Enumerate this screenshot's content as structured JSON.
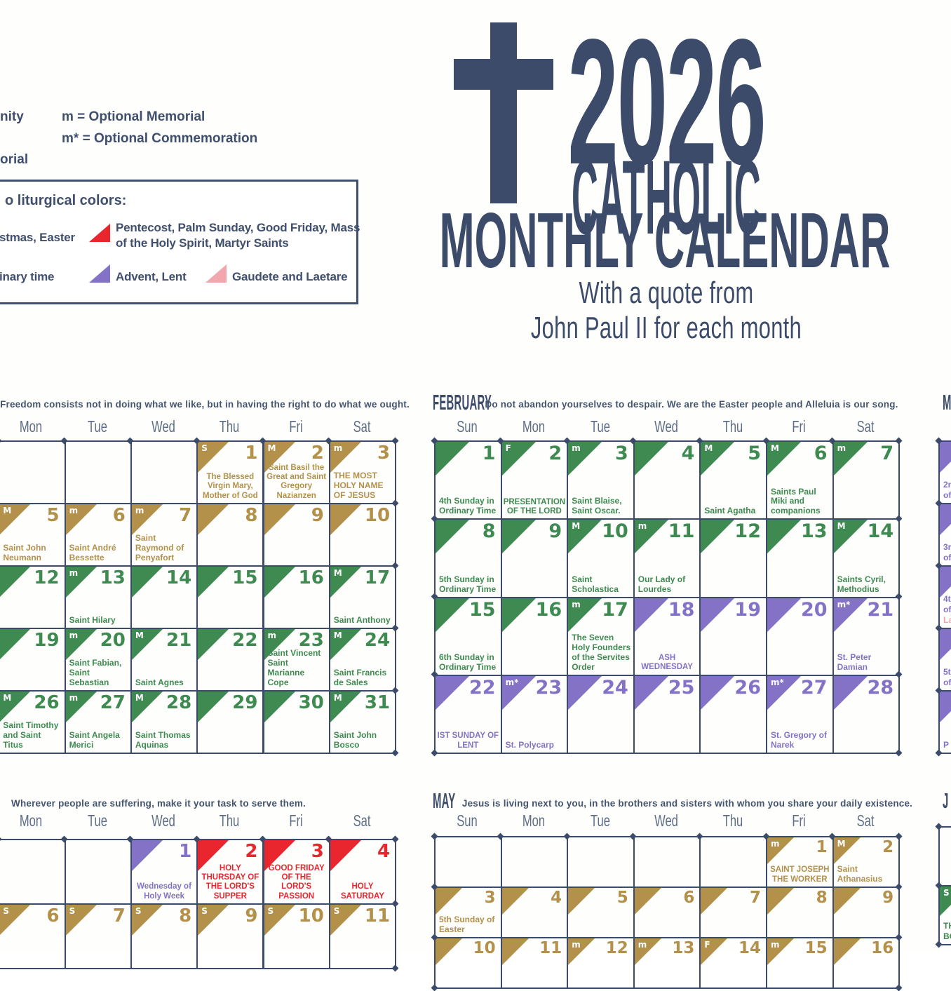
{
  "poster_title": {
    "year": "2026",
    "line1": "CATHOLIC",
    "line2": "MONTHLY CALENDAR",
    "subtitle_line1": "With a quote from",
    "subtitle_line2": "John Paul II for each month"
  },
  "legend": {
    "fragment_solemnity": "nity",
    "optional_memorial": "m = Optional Memorial",
    "optional_commemoration": "m* = Optional Commemoration",
    "fragment_memorial": "orial",
    "colors_box": {
      "title_fragment": "o liturgical colors:",
      "row1_left_fragment": "stmas, Easter",
      "row1_right_line1": "Pentecost, Palm Sunday, Good Friday, Mass",
      "row1_right_line2": "of the Holy Spirit, Martyr Saints",
      "row2_left_fragment": "inary time",
      "row2_mid": "Advent, Lent",
      "row2_right": "Gaudete and Laetare"
    }
  },
  "colors": {
    "navy": "#3b4b69",
    "header_gray": "#5f6e86",
    "gold": "#b3914b",
    "green": "#3e8a50",
    "purple": "#8372c5",
    "pink": "#f2a6ae",
    "red": "#e9262e"
  },
  "months": [
    {
      "id": "january",
      "name": "",
      "quote": "Freedom consists not in doing what we like, but in having the right to do what we ought.",
      "day_headers": [
        "Mon",
        "Tue",
        "Wed",
        "Thu",
        "Fri",
        "Sat"
      ],
      "weeks": [
        [
          {},
          {},
          {},
          {
            "day": "1",
            "season": "gold",
            "badge": "S",
            "label": "The Blessed Virgin Mary, Mother of God",
            "center": true
          },
          {
            "day": "2",
            "season": "gold",
            "badge": "M",
            "label": "Saint Basil the Great and Saint Gregory Nazianzen",
            "center": true
          },
          {
            "day": "3",
            "season": "gold",
            "badge": "m",
            "label": "THE MOST HOLY NAME OF JESUS"
          }
        ],
        [
          {
            "day": "5",
            "season": "gold",
            "badge": "M",
            "label": "Saint John Neumann"
          },
          {
            "day": "6",
            "season": "gold",
            "badge": "m",
            "label": "Saint André Bessette"
          },
          {
            "day": "7",
            "season": "gold",
            "badge": "m",
            "label": "Saint Raymond of Penyafort"
          },
          {
            "day": "8",
            "season": "gold"
          },
          {
            "day": "9",
            "season": "gold"
          },
          {
            "day": "10",
            "season": "gold"
          }
        ],
        [
          {
            "day": "12",
            "season": "green"
          },
          {
            "day": "13",
            "season": "green",
            "badge": "m",
            "label": "Saint Hilary"
          },
          {
            "day": "14",
            "season": "green"
          },
          {
            "day": "15",
            "season": "green"
          },
          {
            "day": "16",
            "season": "green"
          },
          {
            "day": "17",
            "season": "green",
            "badge": "M",
            "label": "Saint Anthony"
          }
        ],
        [
          {
            "day": "19",
            "season": "green"
          },
          {
            "day": "20",
            "season": "green",
            "badge": "m",
            "label": "Saint Fabian, Saint Sebastian"
          },
          {
            "day": "21",
            "season": "green",
            "badge": "M",
            "label": "Saint Agnes"
          },
          {
            "day": "22",
            "season": "green"
          },
          {
            "day": "23",
            "season": "green",
            "badge": "m",
            "label": "Saint Vincent Saint Marianne Cope"
          },
          {
            "day": "24",
            "season": "green",
            "badge": "M",
            "label": "Saint Francis de Sales"
          }
        ],
        [
          {
            "day": "26",
            "season": "green",
            "badge": "M",
            "label": "Saint Timothy and Saint Titus"
          },
          {
            "day": "27",
            "season": "green",
            "badge": "m",
            "label": "Saint Angela Merici"
          },
          {
            "day": "28",
            "season": "green",
            "badge": "M",
            "label": "Saint Thomas Aquinas"
          },
          {
            "day": "29",
            "season": "green"
          },
          {
            "day": "30",
            "season": "green"
          },
          {
            "day": "31",
            "season": "green",
            "badge": "M",
            "label": "Saint John Bosco"
          }
        ]
      ]
    },
    {
      "id": "february",
      "name": "FEBRUARY",
      "quote": "Do not abandon yourselves to despair. We are the Easter people and Alleluia is our song.",
      "day_headers": [
        "Sun",
        "Mon",
        "Tue",
        "Wed",
        "Thu",
        "Fri",
        "Sat"
      ],
      "weeks": [
        [
          {
            "day": "1",
            "season": "green",
            "label": "4th Sunday in Ordinary Time"
          },
          {
            "day": "2",
            "season": "green",
            "badge": "F",
            "label": "PRESENTATION OF THE LORD",
            "center": true
          },
          {
            "day": "3",
            "season": "green",
            "badge": "m",
            "label": "Saint Blaise, Saint Oscar."
          },
          {
            "day": "4",
            "season": "green"
          },
          {
            "day": "5",
            "season": "green",
            "badge": "M",
            "label": "Saint Agatha"
          },
          {
            "day": "6",
            "season": "green",
            "badge": "M",
            "label": "Saints Paul Miki and companions"
          },
          {
            "day": "7",
            "season": "green",
            "badge": "m"
          }
        ],
        [
          {
            "day": "8",
            "season": "green",
            "label": "5th Sunday in Ordinary Time"
          },
          {
            "day": "9",
            "season": "green"
          },
          {
            "day": "10",
            "season": "green",
            "badge": "M",
            "label": "Saint Scholastica"
          },
          {
            "day": "11",
            "season": "green",
            "badge": "m",
            "label": "Our Lady of Lourdes"
          },
          {
            "day": "12",
            "season": "green"
          },
          {
            "day": "13",
            "season": "green"
          },
          {
            "day": "14",
            "season": "green",
            "badge": "M",
            "label": "Saints Cyril, Methodius"
          }
        ],
        [
          {
            "day": "15",
            "season": "green",
            "label": "6th Sunday in Ordinary Time"
          },
          {
            "day": "16",
            "season": "green"
          },
          {
            "day": "17",
            "season": "green",
            "badge": "m",
            "label": "The Seven Holy Founders of the Servites Order"
          },
          {
            "day": "18",
            "season": "purple",
            "label": "ASH WEDNESDAY",
            "center": true
          },
          {
            "day": "19",
            "season": "purple"
          },
          {
            "day": "20",
            "season": "purple"
          },
          {
            "day": "21",
            "season": "purple",
            "badge": "m*",
            "label": "St. Peter Damian"
          }
        ],
        [
          {
            "day": "22",
            "season": "purple",
            "label": "IST SUNDAY OF LENT",
            "center": true
          },
          {
            "day": "23",
            "season": "purple",
            "badge": "m*",
            "label": "St. Polycarp"
          },
          {
            "day": "24",
            "season": "purple"
          },
          {
            "day": "25",
            "season": "purple"
          },
          {
            "day": "26",
            "season": "purple"
          },
          {
            "day": "27",
            "season": "purple",
            "badge": "m*",
            "label": "St. Gregory of Narek"
          },
          {
            "day": "28",
            "season": "purple"
          }
        ]
      ]
    },
    {
      "id": "march",
      "name_fragment": "M",
      "sliver_rows": [
        {
          "season": "purple",
          "lines": [
            {
              "text": "2n"
            },
            {
              "text": "of"
            }
          ]
        },
        {
          "season": "purple",
          "lines": [
            {
              "text": "3r"
            },
            {
              "text": "of"
            }
          ]
        },
        {
          "season": "purple",
          "lines": [
            {
              "text": "4t"
            },
            {
              "text": "of"
            },
            {
              "text": "La",
              "color": "pink"
            }
          ]
        },
        {
          "season": "purple",
          "lines": [
            {
              "text": "5t"
            },
            {
              "text": "of"
            }
          ]
        },
        {
          "season": "purple",
          "lines": [
            {
              "text": "P"
            }
          ]
        }
      ]
    },
    {
      "id": "april",
      "name": "",
      "quote": "Wherever people are suffering, make it your task to serve them.",
      "day_headers": [
        "Mon",
        "Tue",
        "Wed",
        "Thu",
        "Fri",
        "Sat"
      ],
      "weeks": [
        [
          {},
          {},
          {
            "day": "1",
            "season": "purple",
            "label": "Wednesday of Holy Week",
            "center": true
          },
          {
            "day": "2",
            "season": "red",
            "label": "HOLY THURSDAY OF THE LORD'S SUPPER",
            "center": true
          },
          {
            "day": "3",
            "season": "red",
            "label": "GOOD FRIDAY OF THE LORD'S PASSION",
            "center": true
          },
          {
            "day": "4",
            "season": "red",
            "label": "HOLY SATURDAY",
            "center": true
          }
        ],
        [
          {
            "day": "6",
            "season": "gold",
            "badge": "S"
          },
          {
            "day": "7",
            "season": "gold",
            "badge": "S"
          },
          {
            "day": "8",
            "season": "gold",
            "badge": "S"
          },
          {
            "day": "9",
            "season": "gold",
            "badge": "S"
          },
          {
            "day": "10",
            "season": "gold",
            "badge": "S"
          },
          {
            "day": "11",
            "season": "gold",
            "badge": "S"
          }
        ]
      ]
    },
    {
      "id": "may",
      "name": "MAY",
      "quote": "Jesus is living next to you, in the brothers and sisters with whom you share your daily existence.",
      "day_headers": [
        "Sun",
        "Mon",
        "Tue",
        "Wed",
        "Thu",
        "Fri",
        "Sat"
      ],
      "weeks": [
        [
          {},
          {},
          {},
          {},
          {},
          {
            "day": "1",
            "season": "gold",
            "badge": "m",
            "label": "SAINT JOSEPH THE WORKER",
            "center": true
          },
          {
            "day": "2",
            "season": "gold",
            "badge": "M",
            "label": "Saint Athanasius"
          }
        ],
        [
          {
            "day": "3",
            "season": "gold",
            "label": "5th Sunday of Easter"
          },
          {
            "day": "4",
            "season": "gold"
          },
          {
            "day": "5",
            "season": "gold"
          },
          {
            "day": "6",
            "season": "gold"
          },
          {
            "day": "7",
            "season": "gold"
          },
          {
            "day": "8",
            "season": "gold"
          },
          {
            "day": "9",
            "season": "gold"
          }
        ],
        [
          {
            "day": "10",
            "season": "gold"
          },
          {
            "day": "11",
            "season": "gold"
          },
          {
            "day": "12",
            "season": "gold",
            "badge": "m"
          },
          {
            "day": "13",
            "season": "gold",
            "badge": "m"
          },
          {
            "day": "14",
            "season": "gold",
            "badge": "F"
          },
          {
            "day": "15",
            "season": "gold",
            "badge": "m"
          },
          {
            "day": "16",
            "season": "gold"
          }
        ]
      ]
    },
    {
      "id": "june",
      "name_fragment": "J",
      "sliver_rows": [
        {
          "empty": true
        },
        {
          "season": "green",
          "badge": "S",
          "lines": [
            {
              "text": "TH"
            },
            {
              "text": "BO"
            }
          ]
        }
      ]
    }
  ]
}
